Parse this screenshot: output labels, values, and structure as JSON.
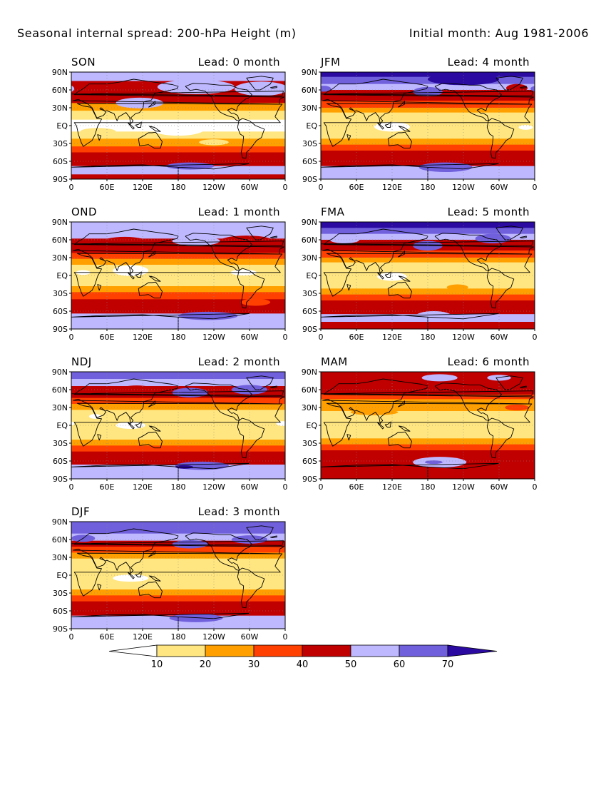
{
  "header": {
    "title": "Seasonal internal spread: 200-hPa Height (m)",
    "subtitle": "Initial month: Aug 1981-2006"
  },
  "chart_data": {
    "type": "heatmap",
    "variable": "Seasonal internal spread of 200-hPa geopotential height",
    "units": "m",
    "projection": "cylindrical equidistant, global",
    "x_ticks": [
      "0",
      "60E",
      "120E",
      "180",
      "120W",
      "60W",
      "0"
    ],
    "y_ticks": [
      "90N",
      "60N",
      "30N",
      "EQ",
      "30S",
      "60S",
      "90S"
    ],
    "lon_range": [
      0,
      360
    ],
    "lat_range": [
      -90,
      90
    ],
    "grid": true,
    "coastlines": true,
    "colorbar": {
      "orientation": "horizontal",
      "placement": "bottom",
      "levels": [
        10,
        20,
        30,
        40,
        50,
        60,
        70
      ],
      "labels": [
        "10",
        "20",
        "30",
        "40",
        "50",
        "60",
        "70"
      ],
      "colors": [
        "#ffffff",
        "#ffe680",
        "#ffa000",
        "#ff4000",
        "#c00000",
        "#beb8ff",
        "#7060dc",
        "#2a0aa0"
      ],
      "extend": "both"
    },
    "panels": [
      {
        "season": "SON",
        "lead_label": "Lead: 0 month",
        "lead": 0,
        "bands": [
          [
            90,
            75,
            5
          ],
          [
            75,
            60,
            4
          ],
          [
            60,
            50,
            4
          ],
          [
            50,
            38,
            4
          ],
          [
            38,
            25,
            2
          ],
          [
            25,
            10,
            1
          ],
          [
            10,
            -10,
            0
          ],
          [
            -10,
            -22,
            1
          ],
          [
            -22,
            -35,
            2
          ],
          [
            -35,
            -45,
            3
          ],
          [
            -45,
            -60,
            4
          ],
          [
            -60,
            -68,
            4
          ],
          [
            -68,
            -82,
            5
          ],
          [
            -82,
            -90,
            4
          ]
        ],
        "blobs": [
          [
            115,
            38,
            40,
            9,
            5
          ],
          [
            210,
            65,
            65,
            12,
            5
          ],
          [
            320,
            62,
            45,
            12,
            5
          ],
          [
            60,
            65,
            30,
            8,
            4
          ],
          [
            200,
            -68,
            40,
            6,
            6
          ],
          [
            180,
            -5,
            45,
            12,
            0
          ],
          [
            240,
            -28,
            25,
            5,
            1
          ],
          [
            45,
            -10,
            30,
            6,
            1
          ]
        ]
      },
      {
        "season": "JFM",
        "lead_label": "Lead: 4 month",
        "lead": 4,
        "bands": [
          [
            90,
            82,
            7
          ],
          [
            82,
            70,
            6
          ],
          [
            70,
            60,
            5
          ],
          [
            60,
            52,
            4
          ],
          [
            52,
            42,
            4
          ],
          [
            42,
            30,
            3
          ],
          [
            30,
            22,
            2
          ],
          [
            22,
            -22,
            1
          ],
          [
            -22,
            -32,
            2
          ],
          [
            -32,
            -42,
            3
          ],
          [
            -42,
            -55,
            4
          ],
          [
            -55,
            -68,
            4
          ],
          [
            -68,
            -80,
            5
          ],
          [
            -80,
            -90,
            5
          ]
        ],
        "blobs": [
          [
            180,
            57,
            25,
            8,
            6
          ],
          [
            240,
            78,
            60,
            10,
            7
          ],
          [
            210,
            -70,
            45,
            8,
            6
          ],
          [
            330,
            63,
            18,
            7,
            4
          ],
          [
            120,
            -2,
            30,
            8,
            0
          ],
          [
            345,
            -3,
            12,
            4,
            0
          ],
          [
            5,
            62,
            12,
            5,
            6
          ]
        ]
      },
      {
        "season": "OND",
        "lead_label": "Lead: 1 month",
        "lead": 1,
        "bands": [
          [
            90,
            72,
            5
          ],
          [
            72,
            62,
            5
          ],
          [
            62,
            48,
            4
          ],
          [
            48,
            38,
            4
          ],
          [
            38,
            28,
            3
          ],
          [
            28,
            18,
            2
          ],
          [
            18,
            -18,
            1
          ],
          [
            -18,
            -28,
            2
          ],
          [
            -28,
            -40,
            3
          ],
          [
            -40,
            -55,
            4
          ],
          [
            -55,
            -64,
            4
          ],
          [
            -64,
            -78,
            5
          ],
          [
            -78,
            -90,
            5
          ]
        ],
        "blobs": [
          [
            90,
            55,
            40,
            10,
            4
          ],
          [
            295,
            55,
            50,
            12,
            4
          ],
          [
            210,
            58,
            40,
            8,
            5
          ],
          [
            230,
            -68,
            50,
            7,
            6
          ],
          [
            100,
            8,
            30,
            9,
            0
          ],
          [
            20,
            5,
            12,
            4,
            0
          ],
          [
            290,
            5,
            22,
            5,
            0
          ],
          [
            310,
            -45,
            25,
            6,
            3
          ]
        ]
      },
      {
        "season": "FMA",
        "lead_label": "Lead: 5 month",
        "lead": 5,
        "bands": [
          [
            90,
            80,
            7
          ],
          [
            80,
            70,
            6
          ],
          [
            70,
            60,
            5
          ],
          [
            60,
            52,
            4
          ],
          [
            52,
            42,
            4
          ],
          [
            42,
            30,
            3
          ],
          [
            30,
            22,
            2
          ],
          [
            22,
            -22,
            1
          ],
          [
            -22,
            -32,
            2
          ],
          [
            -32,
            -42,
            3
          ],
          [
            -42,
            -55,
            4
          ],
          [
            -55,
            -65,
            4
          ],
          [
            -65,
            -78,
            5
          ],
          [
            -78,
            -90,
            4
          ]
        ],
        "blobs": [
          [
            180,
            50,
            25,
            8,
            6
          ],
          [
            290,
            62,
            30,
            8,
            6
          ],
          [
            40,
            60,
            25,
            6,
            5
          ],
          [
            190,
            -68,
            30,
            8,
            5
          ],
          [
            230,
            -20,
            18,
            5,
            2
          ],
          [
            120,
            -2,
            25,
            7,
            0
          ]
        ]
      },
      {
        "season": "NDJ",
        "lead_label": "Lead: 2 month",
        "lead": 2,
        "bands": [
          [
            90,
            78,
            6
          ],
          [
            78,
            66,
            5
          ],
          [
            66,
            56,
            4
          ],
          [
            56,
            46,
            4
          ],
          [
            46,
            36,
            3
          ],
          [
            36,
            26,
            2
          ],
          [
            26,
            -24,
            1
          ],
          [
            -24,
            -34,
            2
          ],
          [
            -34,
            -44,
            3
          ],
          [
            -44,
            -58,
            4
          ],
          [
            -58,
            -66,
            4
          ],
          [
            -66,
            -78,
            5
          ],
          [
            -78,
            -90,
            5
          ]
        ],
        "blobs": [
          [
            200,
            55,
            30,
            8,
            6
          ],
          [
            300,
            60,
            30,
            8,
            6
          ],
          [
            110,
            60,
            30,
            7,
            4
          ],
          [
            220,
            -68,
            45,
            7,
            6
          ],
          [
            190,
            -70,
            15,
            3,
            7
          ],
          [
            100,
            0,
            25,
            6,
            0
          ],
          [
            40,
            15,
            10,
            4,
            0
          ],
          [
            355,
            3,
            10,
            4,
            0
          ]
        ]
      },
      {
        "season": "MAM",
        "lead_label": "Lead: 6 month",
        "lead": 6,
        "bands": [
          [
            90,
            80,
            4
          ],
          [
            80,
            70,
            4
          ],
          [
            70,
            62,
            4
          ],
          [
            62,
            52,
            4
          ],
          [
            52,
            44,
            3
          ],
          [
            44,
            34,
            2
          ],
          [
            34,
            24,
            2
          ],
          [
            24,
            -22,
            1
          ],
          [
            -22,
            -32,
            2
          ],
          [
            -32,
            -42,
            3
          ],
          [
            -42,
            -55,
            4
          ],
          [
            -55,
            -62,
            4
          ],
          [
            -62,
            -75,
            4
          ],
          [
            -75,
            -90,
            4
          ]
        ],
        "blobs": [
          [
            200,
            -62,
            45,
            9,
            5
          ],
          [
            190,
            -62,
            15,
            3,
            6
          ],
          [
            200,
            80,
            30,
            6,
            5
          ],
          [
            300,
            80,
            20,
            5,
            5
          ],
          [
            90,
            22,
            40,
            5,
            2
          ],
          [
            330,
            30,
            20,
            5,
            3
          ]
        ]
      },
      {
        "season": "DJF",
        "lead_label": "Lead: 3 month",
        "lead": 3,
        "bands": [
          [
            90,
            80,
            6
          ],
          [
            80,
            70,
            6
          ],
          [
            70,
            58,
            5
          ],
          [
            58,
            48,
            4
          ],
          [
            48,
            38,
            3
          ],
          [
            38,
            28,
            2
          ],
          [
            28,
            -24,
            1
          ],
          [
            -24,
            -34,
            2
          ],
          [
            -34,
            -44,
            3
          ],
          [
            -44,
            -58,
            4
          ],
          [
            -58,
            -68,
            4
          ],
          [
            -68,
            -80,
            5
          ],
          [
            -80,
            -90,
            5
          ]
        ],
        "blobs": [
          [
            200,
            52,
            30,
            7,
            6
          ],
          [
            300,
            60,
            30,
            7,
            6
          ],
          [
            210,
            -72,
            45,
            7,
            6
          ],
          [
            100,
            -5,
            30,
            6,
            0
          ],
          [
            20,
            62,
            20,
            6,
            6
          ]
        ]
      }
    ]
  }
}
